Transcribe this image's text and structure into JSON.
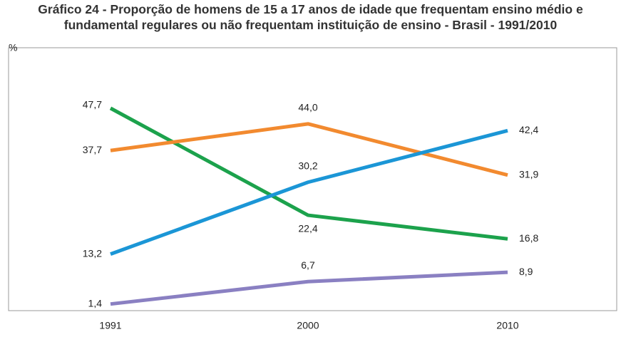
{
  "chart_data": {
    "type": "line",
    "title": "Gráfico 24 - Proporção de homens de 15 a 17 anos de idade que frequentam ensino médio e fundamental regulares ou não frequentam instituição de ensino - Brasil - 1991/2010",
    "y_label": "%",
    "categories": [
      "1991",
      "2000",
      "2010"
    ],
    "series": [
      {
        "color": "#1ca24c",
        "values": [
          47.7,
          22.4,
          16.8
        ],
        "value_labels": [
          "47,7",
          "22,4",
          "16,8"
        ]
      },
      {
        "color": "#f28a2f",
        "values": [
          37.7,
          44.0,
          31.9
        ],
        "value_labels": [
          "37,7",
          "44,0",
          "31,9"
        ]
      },
      {
        "color": "#1b96d6",
        "values": [
          13.2,
          30.2,
          42.4
        ],
        "value_labels": [
          "13,2",
          "30,2",
          "42,4"
        ]
      },
      {
        "color": "#8a80c2",
        "values": [
          1.4,
          6.7,
          8.9
        ],
        "value_labels": [
          "1,4",
          "6,7",
          "8,9"
        ]
      }
    ],
    "ylim": [
      0,
      62
    ]
  }
}
